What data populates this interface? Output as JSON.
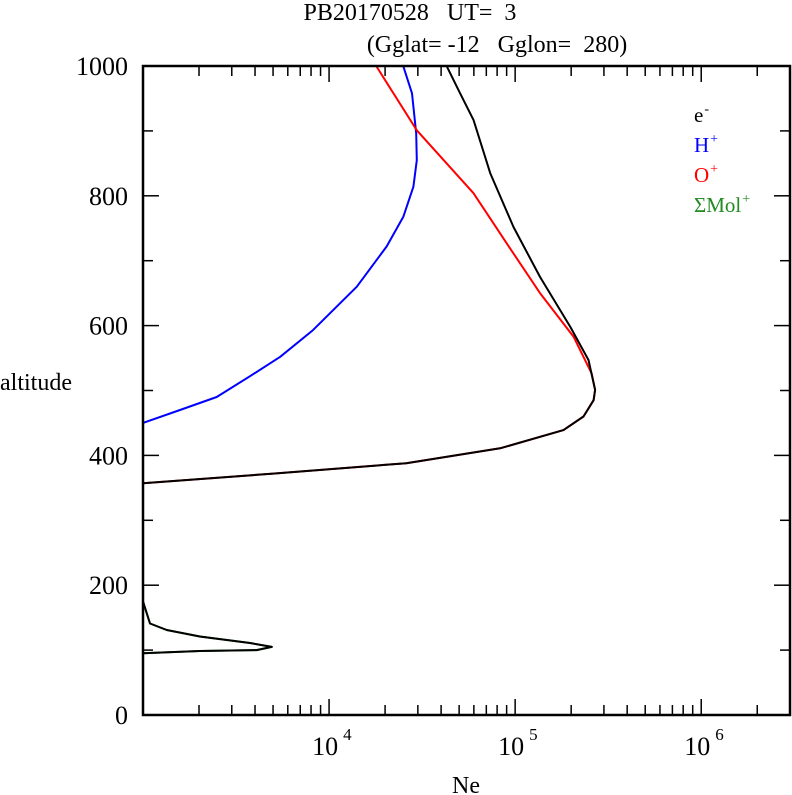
{
  "chart_data": {
    "type": "line",
    "title_line1": "PB20170528   UT=  3",
    "title_line2": "(Gglat= -12   Gglon=  280)",
    "xlabel": "Ne",
    "ylabel": "altitude",
    "xscale": "log",
    "xlim": [
      1000,
      3000000
    ],
    "ylim": [
      0,
      1000
    ],
    "x_tick_labels": [
      {
        "base": "10",
        "exp": "4",
        "value": 10000
      },
      {
        "base": "10",
        "exp": "5",
        "value": 100000
      },
      {
        "base": "10",
        "exp": "6",
        "value": 1000000
      }
    ],
    "y_ticks": [
      0,
      200,
      400,
      600,
      800,
      1000
    ],
    "y_tick_labels": [
      "0",
      "200",
      "400",
      "600",
      "800",
      "1000"
    ],
    "legend_placement": "top-right",
    "series": [
      {
        "name": "e",
        "sup": "-",
        "color": "#000000",
        "points": [
          [
            43000,
            999
          ],
          [
            50600,
            958
          ],
          [
            59700,
            917
          ],
          [
            73400,
            835
          ],
          [
            98000,
            752
          ],
          [
            136000,
            675
          ],
          [
            198000,
            598
          ],
          [
            248000,
            547
          ],
          [
            269000,
            501
          ],
          [
            264000,
            485
          ],
          [
            233000,
            460
          ],
          [
            182000,
            439
          ],
          [
            83000,
            411
          ],
          [
            26000,
            388
          ],
          [
            5000,
            372
          ],
          [
            1000,
            357
          ]
        ],
        "points_lower": [
          [
            1000,
            175
          ],
          [
            1090,
            141
          ],
          [
            1340,
            131
          ],
          [
            2020,
            121
          ],
          [
            3760,
            111
          ],
          [
            4920,
            105
          ],
          [
            4080,
            100
          ],
          [
            2020,
            98.6
          ],
          [
            1000,
            95
          ]
        ]
      },
      {
        "name": "H",
        "sup": "+",
        "color": "#0000ff",
        "points": [
          [
            25100,
            999
          ],
          [
            27900,
            958
          ],
          [
            29400,
            896
          ],
          [
            29600,
            855
          ],
          [
            28400,
            814
          ],
          [
            25100,
            768
          ],
          [
            20400,
            722
          ],
          [
            14100,
            660
          ],
          [
            8200,
            593
          ],
          [
            5460,
            552
          ],
          [
            3760,
            522
          ],
          [
            2490,
            490
          ],
          [
            1580,
            470
          ],
          [
            1000,
            450
          ]
        ]
      },
      {
        "name": "O",
        "sup": "+",
        "color": "#ff0000",
        "points": [
          [
            18000,
            999
          ],
          [
            29600,
            901
          ],
          [
            59700,
            804
          ],
          [
            90000,
            727
          ],
          [
            136000,
            650
          ],
          [
            206000,
            583
          ],
          [
            258000,
            526
          ],
          [
            269000,
            501
          ],
          [
            264000,
            485
          ],
          [
            233000,
            460
          ],
          [
            182000,
            439
          ],
          [
            83000,
            411
          ],
          [
            26000,
            388
          ],
          [
            5000,
            372
          ],
          [
            1000,
            357
          ]
        ]
      },
      {
        "name": "ΣMol",
        "sup": "+",
        "color": "#228b22",
        "points": [
          [
            1000,
            175
          ],
          [
            1090,
            141
          ],
          [
            1340,
            131
          ],
          [
            2020,
            121
          ],
          [
            3760,
            111
          ],
          [
            4920,
            105
          ],
          [
            4080,
            100
          ],
          [
            2020,
            98.6
          ],
          [
            1000,
            95
          ]
        ]
      }
    ]
  }
}
